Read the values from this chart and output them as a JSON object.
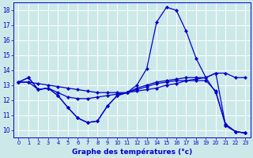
{
  "xlabel": "Graphe des températures (°c)",
  "bg_color": "#cce8e8",
  "grid_color": "#ffffff",
  "line_color": "#0000cc",
  "xlim": [
    -0.5,
    23.5
  ],
  "ylim": [
    9.5,
    18.5
  ],
  "yticks": [
    10,
    11,
    12,
    13,
    14,
    15,
    16,
    17,
    18
  ],
  "xticks": [
    0,
    1,
    2,
    3,
    4,
    5,
    6,
    7,
    8,
    9,
    10,
    11,
    12,
    13,
    14,
    15,
    16,
    17,
    18,
    19,
    20,
    21,
    22,
    23
  ],
  "series": [
    {
      "x": [
        0,
        1,
        2,
        3,
        4,
        5,
        6,
        7,
        8,
        9,
        10,
        11,
        12,
        13,
        14,
        15,
        16,
        17,
        18,
        19,
        20,
        21,
        22,
        23
      ],
      "y": [
        13.2,
        13.5,
        12.7,
        12.8,
        12.3,
        11.5,
        10.8,
        10.5,
        10.6,
        11.6,
        12.3,
        12.5,
        13.0,
        14.1,
        17.2,
        18.2,
        18.0,
        16.6,
        14.8,
        13.5,
        13.8,
        10.3,
        9.9,
        9.8
      ]
    },
    {
      "x": [
        0,
        1,
        2,
        3,
        4,
        5,
        6,
        7,
        8,
        9,
        10,
        11,
        12,
        13,
        14,
        15,
        16,
        17,
        18,
        19,
        20,
        21,
        22,
        23
      ],
      "y": [
        13.2,
        13.2,
        13.1,
        13.0,
        12.9,
        12.8,
        12.7,
        12.6,
        12.5,
        12.5,
        12.5,
        12.5,
        12.6,
        12.7,
        12.8,
        13.0,
        13.1,
        13.3,
        13.4,
        13.5,
        13.8,
        13.8,
        13.5,
        13.5
      ]
    },
    {
      "x": [
        0,
        1,
        2,
        3,
        4,
        5,
        6,
        7,
        8,
        9,
        10,
        11,
        12,
        13,
        14,
        15,
        16,
        17,
        18,
        19,
        20,
        21,
        22,
        23
      ],
      "y": [
        13.2,
        13.2,
        12.7,
        12.8,
        12.5,
        12.2,
        12.1,
        12.1,
        12.2,
        12.3,
        12.4,
        12.5,
        12.7,
        12.9,
        13.1,
        13.2,
        13.3,
        13.3,
        13.3,
        13.3,
        12.6,
        10.3,
        9.9,
        9.8
      ]
    },
    {
      "x": [
        0,
        1,
        2,
        3,
        4,
        5,
        6,
        7,
        8,
        9,
        10,
        11,
        12,
        13,
        14,
        15,
        16,
        17,
        18,
        19,
        20,
        21,
        22,
        23
      ],
      "y": [
        13.2,
        13.5,
        12.7,
        12.8,
        12.3,
        11.5,
        10.8,
        10.5,
        10.6,
        11.6,
        12.3,
        12.5,
        12.8,
        13.0,
        13.2,
        13.3,
        13.4,
        13.5,
        13.5,
        13.5,
        12.5,
        10.4,
        9.9,
        9.8
      ]
    }
  ]
}
